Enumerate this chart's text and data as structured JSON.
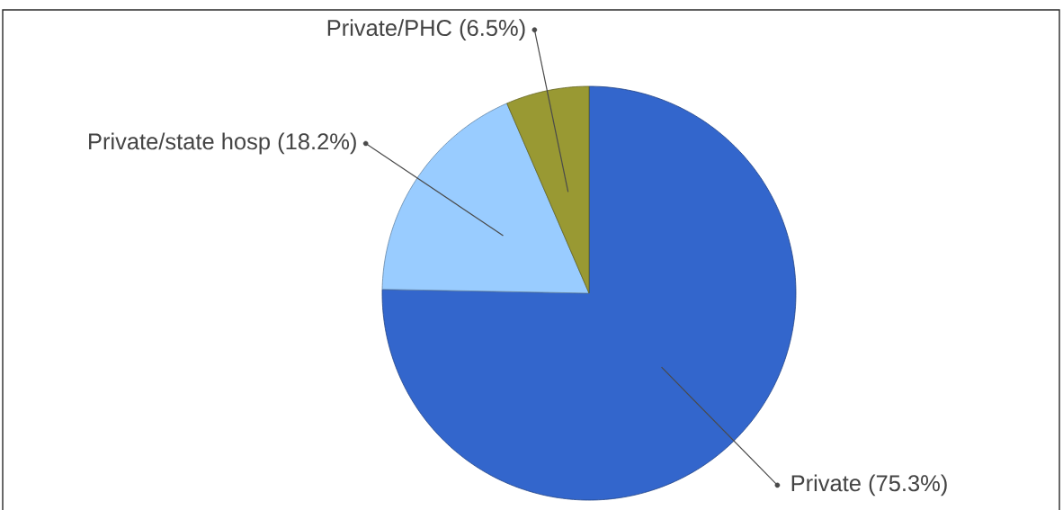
{
  "chart_data": {
    "type": "pie",
    "categories": [
      "Private",
      "Private/state hosp",
      "Private/PHC"
    ],
    "values": [
      75.3,
      18.2,
      6.5
    ],
    "colors": [
      "#3366cc",
      "#99ccff",
      "#999933"
    ],
    "value_labels": [
      "(75.3%)",
      "(18.2%)",
      "(6.5%)"
    ]
  }
}
